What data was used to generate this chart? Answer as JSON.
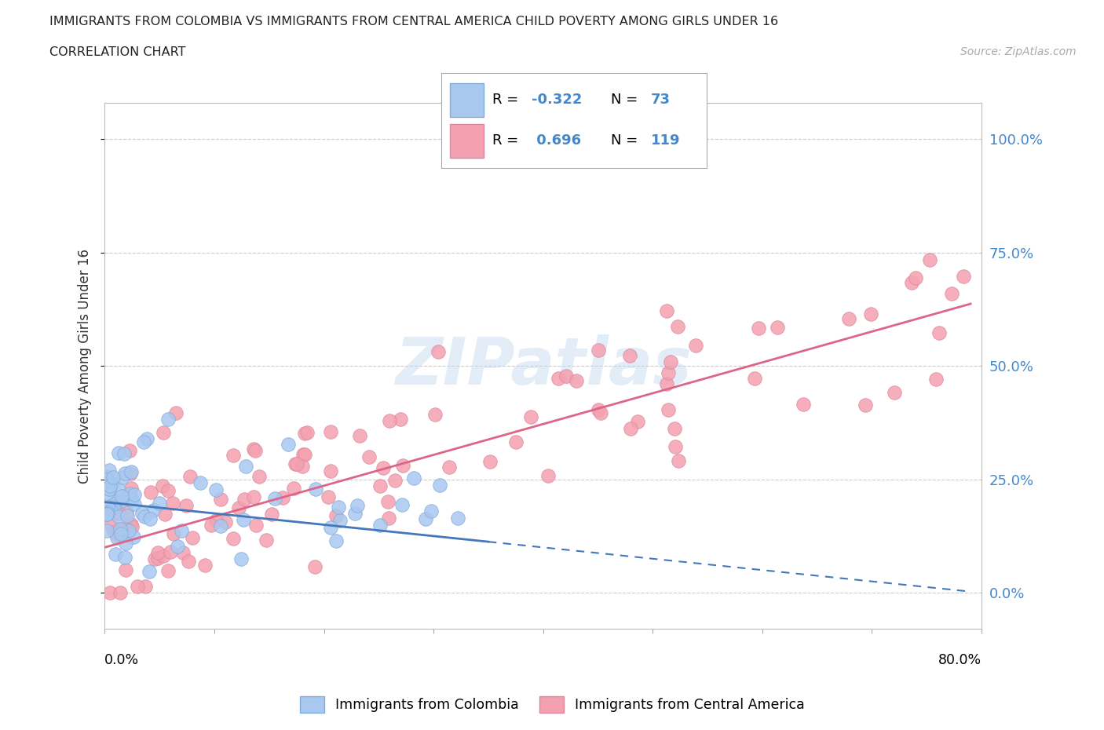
{
  "title": "IMMIGRANTS FROM COLOMBIA VS IMMIGRANTS FROM CENTRAL AMERICA CHILD POVERTY AMONG GIRLS UNDER 16",
  "subtitle": "CORRELATION CHART",
  "source": "Source: ZipAtlas.com",
  "ylabel": "Child Poverty Among Girls Under 16",
  "ytick_values": [
    0,
    25,
    50,
    75,
    100
  ],
  "ytick_labels": [
    "0.0%",
    "25.0%",
    "50.0%",
    "75.0%",
    "100.0%"
  ],
  "xmin": 0.0,
  "xmax": 80.0,
  "ymin": -8,
  "ymax": 108,
  "legend1_label_r": "R = -0.322",
  "legend1_label_n": "N =  73",
  "legend2_label_r": "R =  0.696",
  "legend2_label_n": "N = 119",
  "bottom_legend1": "Immigrants from Colombia",
  "bottom_legend2": "Immigrants from Central America",
  "color_colombia": "#a8c8f0",
  "color_central_america": "#f5a0b0",
  "edge_colombia": "#80aad8",
  "edge_central_america": "#d888a0",
  "line_colombia": "#4477bb",
  "line_central_america": "#dd6688",
  "watermark_text": "ZIPatlas",
  "background_color": "#ffffff",
  "grid_color": "#cccccc",
  "title_color": "#222222",
  "axis_label_color": "#4488cc",
  "ylabel_color": "#333333"
}
